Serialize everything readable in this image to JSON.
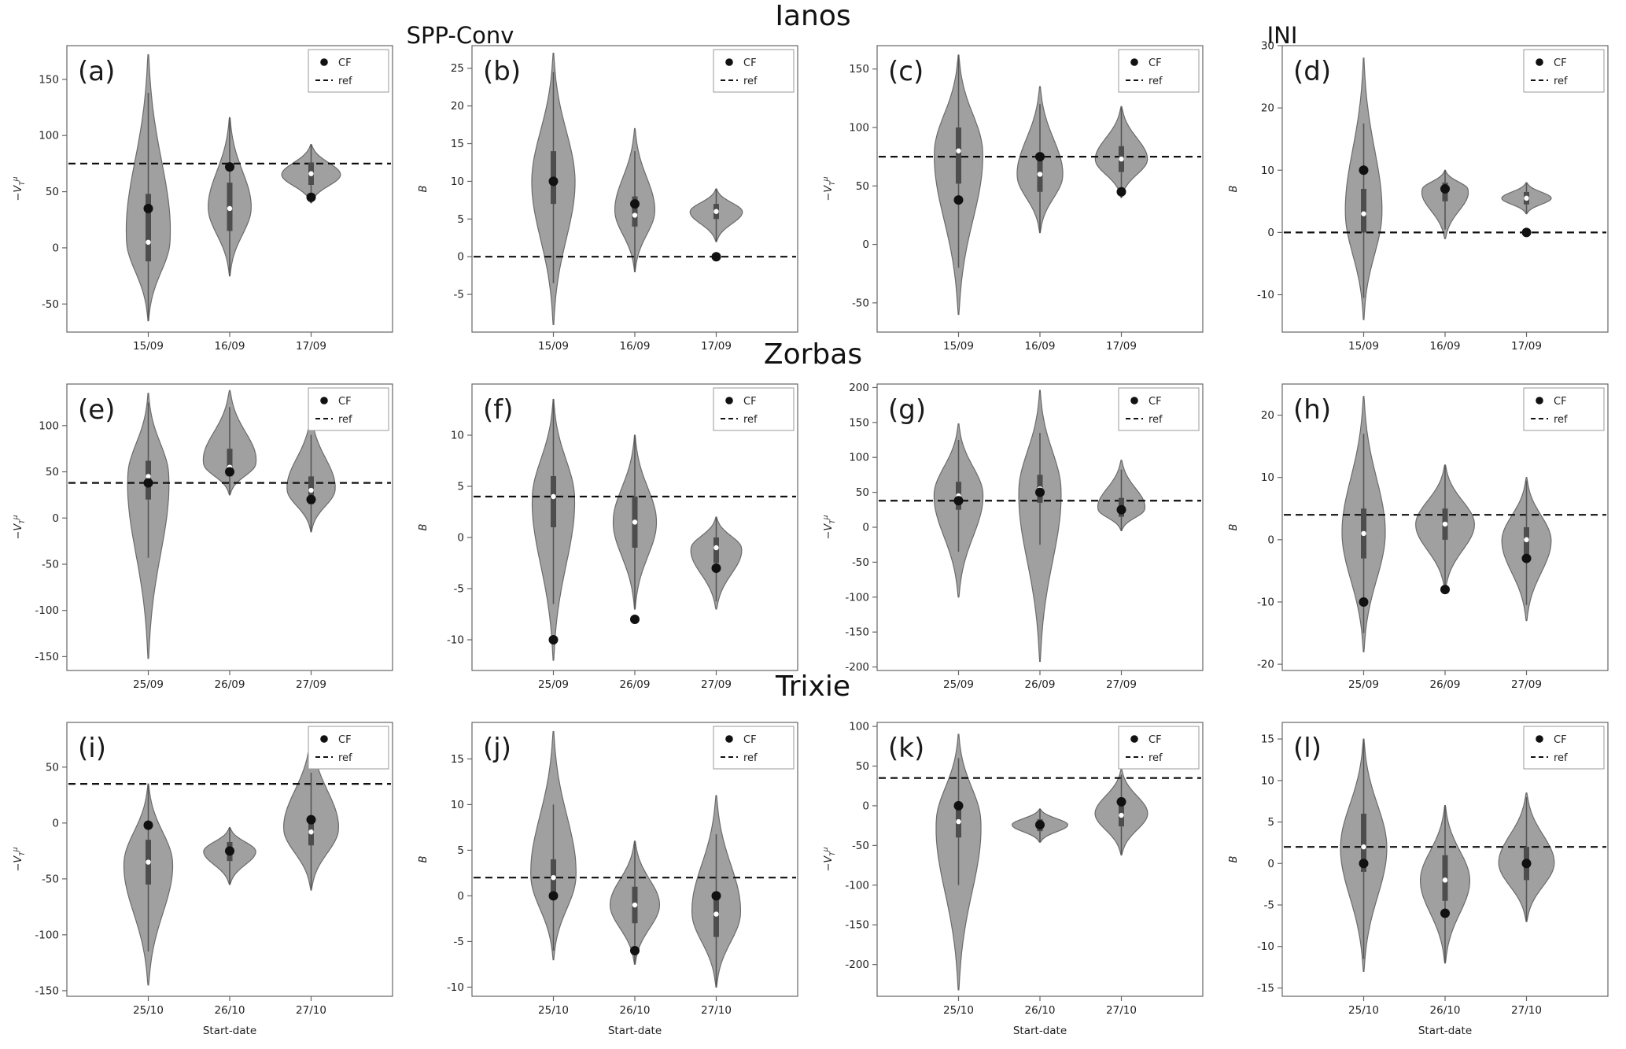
{
  "figure": {
    "titles": {
      "group_left": "SPP-Conv",
      "group_right": "INI",
      "storm_row1": "Ianos",
      "storm_row2": "Zorbas",
      "storm_row3": "Trixie"
    },
    "legend": {
      "cf_label": "CF",
      "ref_label": "ref"
    }
  },
  "style": {
    "violin_fill": "#8f8f8f",
    "violin_stroke": "#6b6b6b",
    "violin_opacity": 0.85,
    "box_color": "#4d4d4d",
    "whisker_color": "#555555",
    "median_dot": "#ffffff",
    "cf_dot": "#111111",
    "ref_color": "#111111",
    "axis_color": "#666666",
    "text_color": "#222222"
  },
  "chart_data": {
    "type": "violin",
    "legend": [
      "CF",
      "ref"
    ],
    "panels": [
      {
        "id": "a",
        "label": "(a)",
        "ylabel": {
          "base": "−V",
          "sub": "T",
          "sup": "μ"
        },
        "xlabel": "",
        "categories": [
          "15/09",
          "16/09",
          "17/09"
        ],
        "ylim": [
          -75,
          180
        ],
        "yticks": [
          -50,
          0,
          50,
          100,
          150
        ],
        "ref": 75,
        "violins": [
          {
            "lo": -65,
            "hi": 172,
            "mode": 5,
            "q1": -12,
            "q3": 48,
            "median": 5,
            "cf": 35,
            "w": 0.75
          },
          {
            "lo": -25,
            "hi": 116,
            "mode": 35,
            "q1": 15,
            "q3": 58,
            "median": 35,
            "cf": 72,
            "w": 0.7
          },
          {
            "lo": 40,
            "hi": 92,
            "mode": 65,
            "q1": 56,
            "q3": 76,
            "median": 66,
            "cf": 45,
            "w": 0.95
          }
        ]
      },
      {
        "id": "b",
        "label": "(b)",
        "ylabel": {
          "base": "B"
        },
        "xlabel": "",
        "categories": [
          "15/09",
          "16/09",
          "17/09"
        ],
        "ylim": [
          -10,
          28
        ],
        "yticks": [
          -5,
          0,
          5,
          10,
          15,
          20,
          25
        ],
        "ref": 0,
        "violins": [
          {
            "lo": -9,
            "hi": 27,
            "mode": 10,
            "q1": 7,
            "q3": 14,
            "median": 10,
            "cf": 10,
            "w": 0.7
          },
          {
            "lo": -2,
            "hi": 17,
            "mode": 6,
            "q1": 4,
            "q3": 8,
            "median": 5.5,
            "cf": 7,
            "w": 0.65
          },
          {
            "lo": 2,
            "hi": 9,
            "mode": 6,
            "q1": 5,
            "q3": 7,
            "median": 6,
            "cf": 0,
            "w": 0.85
          }
        ]
      },
      {
        "id": "c",
        "label": "(c)",
        "ylabel": {
          "base": "−V",
          "sub": "T",
          "sup": "μ"
        },
        "xlabel": "",
        "categories": [
          "15/09",
          "16/09",
          "17/09"
        ],
        "ylim": [
          -75,
          170
        ],
        "yticks": [
          -50,
          0,
          50,
          100,
          150
        ],
        "ref": 75,
        "violins": [
          {
            "lo": -60,
            "hi": 162,
            "mode": 80,
            "q1": 52,
            "q3": 100,
            "median": 80,
            "cf": 38,
            "w": 0.8
          },
          {
            "lo": 10,
            "hi": 135,
            "mode": 58,
            "q1": 45,
            "q3": 75,
            "median": 60,
            "cf": 75,
            "w": 0.75
          },
          {
            "lo": 40,
            "hi": 118,
            "mode": 72,
            "q1": 62,
            "q3": 84,
            "median": 73,
            "cf": 45,
            "w": 0.85
          }
        ]
      },
      {
        "id": "d",
        "label": "(d)",
        "ylabel": {
          "base": "B"
        },
        "xlabel": "",
        "categories": [
          "15/09",
          "16/09",
          "17/09"
        ],
        "ylim": [
          -16,
          30
        ],
        "yticks": [
          -10,
          0,
          10,
          20,
          30
        ],
        "ref": 0,
        "violins": [
          {
            "lo": -14,
            "hi": 28,
            "mode": 3,
            "q1": 0,
            "q3": 7,
            "median": 3,
            "cf": 10,
            "w": 0.6
          },
          {
            "lo": -1,
            "hi": 10,
            "mode": 7,
            "q1": 5,
            "q3": 8,
            "median": 6.8,
            "cf": 7,
            "w": 0.8
          },
          {
            "lo": 3,
            "hi": 8,
            "mode": 5.5,
            "q1": 4.5,
            "q3": 6.5,
            "median": 5.5,
            "cf": 0,
            "w": 0.8
          }
        ]
      },
      {
        "id": "e",
        "label": "(e)",
        "ylabel": {
          "base": "−V",
          "sub": "T",
          "sup": "μ"
        },
        "xlabel": "",
        "categories": [
          "25/09",
          "26/09",
          "27/09"
        ],
        "ylim": [
          -165,
          145
        ],
        "yticks": [
          -150,
          -100,
          -50,
          0,
          50,
          100
        ],
        "ref": 38,
        "violins": [
          {
            "lo": -152,
            "hi": 135,
            "mode": 48,
            "q1": 20,
            "q3": 62,
            "median": 45,
            "cf": 38,
            "w": 0.7
          },
          {
            "lo": 25,
            "hi": 138,
            "mode": 58,
            "q1": 45,
            "q3": 75,
            "median": 55,
            "cf": 50,
            "w": 0.9
          },
          {
            "lo": -15,
            "hi": 112,
            "mode": 30,
            "q1": 15,
            "q3": 45,
            "median": 30,
            "cf": 20,
            "w": 0.8
          }
        ]
      },
      {
        "id": "f",
        "label": "(f)",
        "ylabel": {
          "base": "B"
        },
        "xlabel": "",
        "categories": [
          "25/09",
          "26/09",
          "27/09"
        ],
        "ylim": [
          -13,
          15
        ],
        "yticks": [
          -10,
          -5,
          0,
          5,
          10
        ],
        "ref": 4,
        "violins": [
          {
            "lo": -12,
            "hi": 13.5,
            "mode": 4,
            "q1": 1,
            "q3": 6,
            "median": 4,
            "cf": -10,
            "w": 0.7
          },
          {
            "lo": -7,
            "hi": 10,
            "mode": 1.5,
            "q1": -1,
            "q3": 4,
            "median": 1.5,
            "cf": -8,
            "w": 0.7
          },
          {
            "lo": -7,
            "hi": 2,
            "mode": -1,
            "q1": -2.5,
            "q3": 0,
            "median": -1,
            "cf": -3,
            "w": 0.85
          }
        ]
      },
      {
        "id": "g",
        "label": "(g)",
        "ylabel": {
          "base": "−V",
          "sub": "T",
          "sup": "μ"
        },
        "xlabel": "",
        "categories": [
          "25/09",
          "26/09",
          "27/09"
        ],
        "ylim": [
          -205,
          205
        ],
        "yticks": [
          -200,
          -150,
          -100,
          -50,
          0,
          50,
          100,
          150,
          200
        ],
        "ref": 38,
        "violins": [
          {
            "lo": -100,
            "hi": 148,
            "mode": 48,
            "q1": 25,
            "q3": 65,
            "median": 45,
            "cf": 38,
            "w": 0.8
          },
          {
            "lo": -192,
            "hi": 196,
            "mode": 55,
            "q1": 35,
            "q3": 75,
            "median": 55,
            "cf": 50,
            "w": 0.7
          },
          {
            "lo": -5,
            "hi": 96,
            "mode": 25,
            "q1": 15,
            "q3": 42,
            "median": 26,
            "cf": 25,
            "w": 0.8
          }
        ]
      },
      {
        "id": "h",
        "label": "(h)",
        "ylabel": {
          "base": "B"
        },
        "xlabel": "",
        "categories": [
          "25/09",
          "26/09",
          "27/09"
        ],
        "ylim": [
          -21,
          25
        ],
        "yticks": [
          -20,
          -10,
          0,
          10,
          20
        ],
        "ref": 4,
        "violins": [
          {
            "lo": -18,
            "hi": 23,
            "mode": 1,
            "q1": -3,
            "q3": 5,
            "median": 1,
            "cf": -10,
            "w": 0.7
          },
          {
            "lo": -8,
            "hi": 12,
            "mode": 2.5,
            "q1": 0,
            "q3": 5,
            "median": 2.5,
            "cf": -8,
            "w": 0.95
          },
          {
            "lo": -13,
            "hi": 10,
            "mode": 0,
            "q1": -3,
            "q3": 2,
            "median": 0,
            "cf": -3,
            "w": 0.8
          }
        ]
      },
      {
        "id": "i",
        "label": "(i)",
        "ylabel": {
          "base": "−V",
          "sub": "T",
          "sup": "μ"
        },
        "xlabel": "Start-date",
        "categories": [
          "25/10",
          "26/10",
          "27/10"
        ],
        "ylim": [
          -155,
          90
        ],
        "yticks": [
          -150,
          -100,
          -50,
          0,
          50
        ],
        "ref": 35,
        "violins": [
          {
            "lo": -145,
            "hi": 35,
            "mode": -35,
            "q1": -55,
            "q3": -15,
            "median": -35,
            "cf": -2,
            "w": 0.8
          },
          {
            "lo": -55,
            "hi": -4,
            "mode": -25,
            "q1": -34,
            "q3": -17,
            "median": -25,
            "cf": -25,
            "w": 0.85
          },
          {
            "lo": -60,
            "hi": 78,
            "mode": -6,
            "q1": -20,
            "q3": 6,
            "median": -8,
            "cf": 3,
            "w": 0.9
          }
        ]
      },
      {
        "id": "j",
        "label": "(j)",
        "ylabel": {
          "base": "B"
        },
        "xlabel": "Start-date",
        "categories": [
          "25/10",
          "26/10",
          "27/10"
        ],
        "ylim": [
          -11,
          19
        ],
        "yticks": [
          -10,
          -5,
          0,
          5,
          10,
          15
        ],
        "ref": 2,
        "violins": [
          {
            "lo": -7,
            "hi": 18,
            "mode": 2,
            "q1": 0,
            "q3": 4,
            "median": 2,
            "cf": 0,
            "w": 0.75
          },
          {
            "lo": -7.5,
            "hi": 6,
            "mode": -1,
            "q1": -3,
            "q3": 1,
            "median": -1,
            "cf": -6,
            "w": 0.8
          },
          {
            "lo": -10,
            "hi": 11,
            "mode": -2,
            "q1": -4.5,
            "q3": 0,
            "median": -2,
            "cf": 0,
            "w": 0.8
          }
        ]
      },
      {
        "id": "k",
        "label": "(k)",
        "ylabel": {
          "base": "−V",
          "sub": "T",
          "sup": "μ"
        },
        "xlabel": "Start-date",
        "categories": [
          "25/10",
          "26/10",
          "27/10"
        ],
        "ylim": [
          -240,
          105
        ],
        "yticks": [
          -200,
          -150,
          -100,
          -50,
          0,
          50,
          100
        ],
        "ref": 35,
        "violins": [
          {
            "lo": -232,
            "hi": 90,
            "mode": -18,
            "q1": -40,
            "q3": 0,
            "median": -20,
            "cf": 0,
            "w": 0.75
          },
          {
            "lo": -46,
            "hi": -4,
            "mode": -24,
            "q1": -32,
            "q3": -17,
            "median": -24,
            "cf": -24,
            "w": 0.9
          },
          {
            "lo": -62,
            "hi": 46,
            "mode": -10,
            "q1": -26,
            "q3": 0,
            "median": -12,
            "cf": 5,
            "w": 0.85
          }
        ]
      },
      {
        "id": "l",
        "label": "(l)",
        "ylabel": {
          "base": "B"
        },
        "xlabel": "Start-date",
        "categories": [
          "25/10",
          "26/10",
          "27/10"
        ],
        "ylim": [
          -16,
          17
        ],
        "yticks": [
          -15,
          -10,
          -5,
          0,
          5,
          10,
          15
        ],
        "ref": 2,
        "violins": [
          {
            "lo": -13,
            "hi": 15,
            "mode": 2,
            "q1": -1,
            "q3": 6,
            "median": 2,
            "cf": 0,
            "w": 0.75
          },
          {
            "lo": -12,
            "hi": 7,
            "mode": -2,
            "q1": -4.5,
            "q3": 1,
            "median": -2,
            "cf": -6,
            "w": 0.8
          },
          {
            "lo": -7,
            "hi": 8.5,
            "mode": 0,
            "q1": -2,
            "q3": 2,
            "median": 0,
            "cf": 0,
            "w": 0.9
          }
        ]
      }
    ]
  }
}
